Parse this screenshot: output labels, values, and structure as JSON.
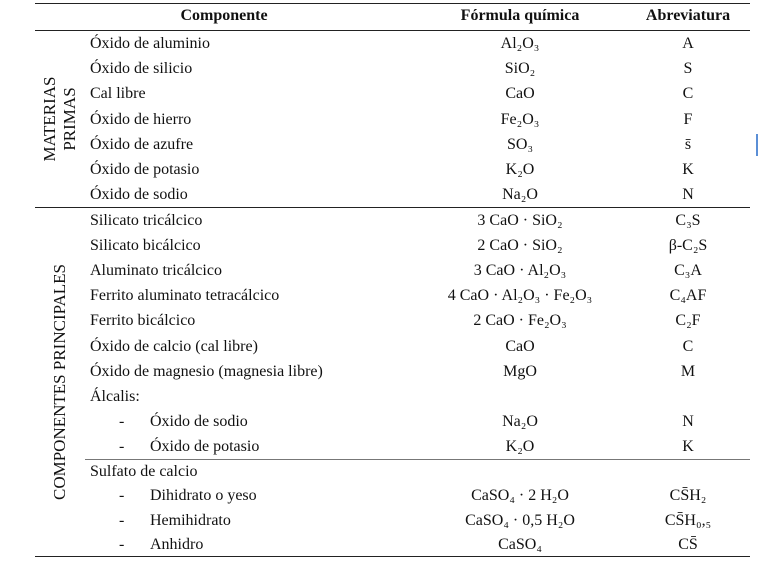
{
  "header": {
    "columns": [
      "Componente",
      "Fórmula química",
      "Abreviatura"
    ]
  },
  "groups": [
    {
      "label": [
        "MATERIAS",
        "PRIMAS"
      ],
      "blocks": [
        [
          {
            "component": "Óxido de aluminio",
            "formula": "Al₂O₃",
            "abbreviation": "A"
          },
          {
            "component": "Óxido de silicio",
            "formula": "SiO₂",
            "abbreviation": "S"
          },
          {
            "component": "Cal libre",
            "formula": "CaO",
            "abbreviation": "C"
          },
          {
            "component": "Óxido de hierro",
            "formula": "Fe₂O₃",
            "abbreviation": "F"
          },
          {
            "component": "Óxido de azufre",
            "formula": "SO₃",
            "abbreviation": "s̄"
          },
          {
            "component": "Óxido de potasio",
            "formula": "K₂O",
            "abbreviation": "K"
          },
          {
            "component": "Óxido de sodio",
            "formula": "Na₂O",
            "abbreviation": "N"
          }
        ]
      ]
    },
    {
      "label": [
        "COMPONENTES PRINCIPALES"
      ],
      "blocks": [
        [
          {
            "component": "Silicato tricálcico",
            "formula": "3 CaO · SiO₂",
            "abbreviation": "C₃S"
          },
          {
            "component": "Silicato bicálcico",
            "formula": "2 CaO · SiO₂",
            "abbreviation": "β-C₂S"
          },
          {
            "component": "Aluminato tricálcico",
            "formula": "3 CaO · Al₂O₃",
            "abbreviation": "C₃A"
          },
          {
            "component": "Ferrito aluminato tetracálcico",
            "formula": "4 CaO · Al₂O₃ · Fe₂O₃",
            "abbreviation": "C₄AF"
          },
          {
            "component": "Ferrito bicálcico",
            "formula": "2 CaO · Fe₂O₃",
            "abbreviation": "C₂F"
          },
          {
            "component": "Óxido de calcio (cal libre)",
            "formula": "CaO",
            "abbreviation": "C"
          },
          {
            "component": "Óxido de magnesio (magnesia libre)",
            "formula": "MgO",
            "abbreviation": "M"
          },
          {
            "component": "Álcalis:"
          },
          {
            "bullet": "-",
            "component": "Óxido de sodio",
            "formula": "Na₂O",
            "abbreviation": "N"
          },
          {
            "bullet": "-",
            "component": "Óxido de potasio",
            "formula": "K₂O",
            "abbreviation": "K"
          }
        ],
        [
          {
            "component": "Sulfato de calcio"
          },
          {
            "bullet": "-",
            "component": "Dihidrato o yeso",
            "formula": "CaSO₄ · 2 H₂O",
            "abbreviation": "CS̄H₂"
          },
          {
            "bullet": "-",
            "component": "Hemihidrato",
            "formula": "CaSO₄ · 0,5  H₂O",
            "abbreviation": "CS̄H₀,₅"
          },
          {
            "bullet": "-",
            "component": "Anhidro",
            "formula": "CaSO₄",
            "abbreviation": "CS̄"
          }
        ]
      ]
    }
  ]
}
